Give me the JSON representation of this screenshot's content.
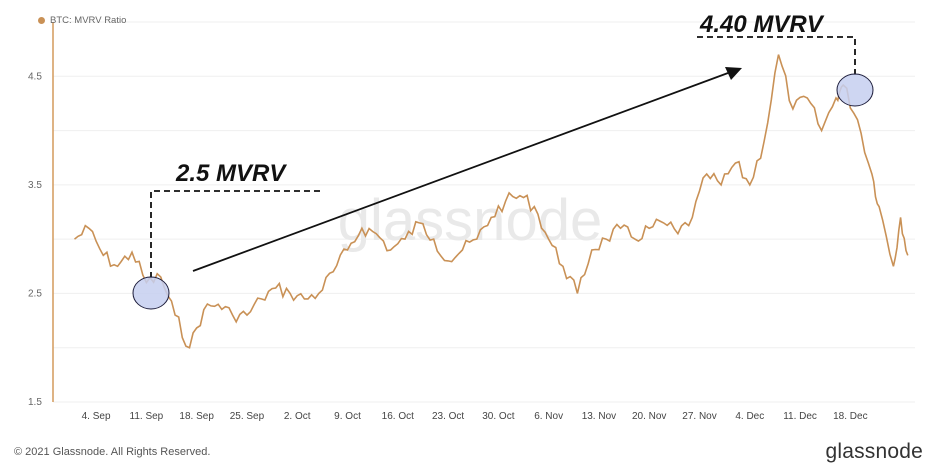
{
  "legend": {
    "label": "BTC: MVRV Ratio"
  },
  "footer": {
    "copyright": "© 2021 Glassnode. All Rights Reserved.",
    "brand": "glassnode"
  },
  "watermark": "glassnode",
  "colors": {
    "line": "#c99156",
    "axis": "#d39a5c",
    "grid": "#efefef",
    "highlight_fill": "#c6cff0",
    "highlight_stroke": "#1c1c3a"
  },
  "annotations": {
    "low": {
      "label": "2.5 MVRV"
    },
    "high": {
      "label": "4.40 MVRV"
    }
  },
  "chart_data": {
    "type": "line",
    "title": "",
    "xlabel": "",
    "ylabel": "",
    "ylim": [
      1.5,
      5.0
    ],
    "grid": true,
    "legend_placement": "top-left",
    "y_ticks": [
      1.5,
      2.5,
      3.5,
      4.5
    ],
    "x_ticks": [
      "4. Sep",
      "11. Sep",
      "18. Sep",
      "25. Sep",
      "2. Oct",
      "9. Oct",
      "16. Oct",
      "23. Oct",
      "30. Oct",
      "6. Nov",
      "13. Nov",
      "20. Nov",
      "27. Nov",
      "4. Dec",
      "11. Dec",
      "18. Dec"
    ],
    "series": [
      {
        "name": "BTC: MVRV Ratio",
        "x": [
          "2017-09-01",
          "2017-09-03",
          "2017-09-05",
          "2017-09-07",
          "2017-09-09",
          "2017-09-11",
          "2017-09-13",
          "2017-09-15",
          "2017-09-17",
          "2017-09-19",
          "2017-09-21",
          "2017-09-23",
          "2017-09-25",
          "2017-09-27",
          "2017-09-29",
          "2017-10-01",
          "2017-10-03",
          "2017-10-05",
          "2017-10-07",
          "2017-10-09",
          "2017-10-11",
          "2017-10-13",
          "2017-10-15",
          "2017-10-17",
          "2017-10-19",
          "2017-10-21",
          "2017-10-23",
          "2017-10-25",
          "2017-10-27",
          "2017-10-29",
          "2017-10-31",
          "2017-11-02",
          "2017-11-04",
          "2017-11-06",
          "2017-11-08",
          "2017-11-10",
          "2017-11-12",
          "2017-11-14",
          "2017-11-16",
          "2017-11-18",
          "2017-11-20",
          "2017-11-22",
          "2017-11-24",
          "2017-11-26",
          "2017-11-28",
          "2017-11-30",
          "2017-12-02",
          "2017-12-04",
          "2017-12-06",
          "2017-12-08",
          "2017-12-10",
          "2017-12-12",
          "2017-12-14",
          "2017-12-16",
          "2017-12-17",
          "2017-12-19",
          "2017-12-21",
          "2017-12-22",
          "2017-12-24",
          "2017-12-25",
          "2017-12-26"
        ],
        "values": [
          3.0,
          3.1,
          2.85,
          2.75,
          2.88,
          2.6,
          2.65,
          2.3,
          2.0,
          2.35,
          2.4,
          2.3,
          2.3,
          2.45,
          2.55,
          2.5,
          2.45,
          2.5,
          2.7,
          2.9,
          3.1,
          3.05,
          2.9,
          3.0,
          3.15,
          3.0,
          2.8,
          2.9,
          3.0,
          3.2,
          3.35,
          3.4,
          3.3,
          3.0,
          2.75,
          2.5,
          2.9,
          3.0,
          3.1,
          3.0,
          3.1,
          3.15,
          3.05,
          3.2,
          3.6,
          3.5,
          3.7,
          3.5,
          3.9,
          4.7,
          4.2,
          4.3,
          4.0,
          4.3,
          4.42,
          4.1,
          3.6,
          3.3,
          2.75,
          3.2,
          2.85
        ]
      }
    ]
  }
}
